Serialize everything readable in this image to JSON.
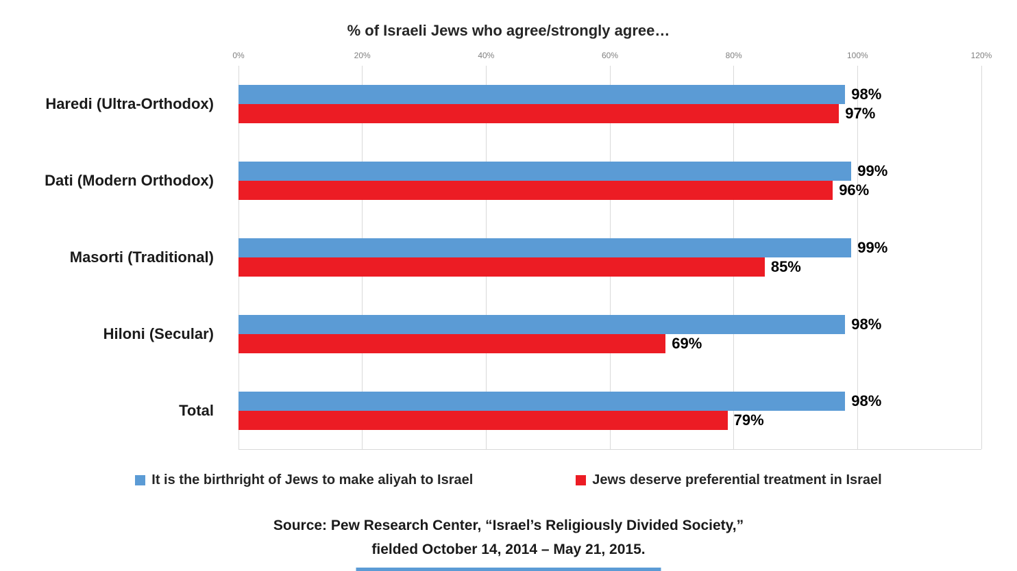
{
  "chart_data": {
    "type": "bar",
    "orientation": "horizontal",
    "title": "% of Israeli Jews who agree/strongly agree…",
    "categories": [
      "Haredi (Ultra-Orthodox)",
      "Dati (Modern Orthodox)",
      "Masorti (Traditional)",
      "Hiloni (Secular)",
      "Total"
    ],
    "series": [
      {
        "name": "It is the birthright of Jews to make aliyah to Israel",
        "color": "#5B9BD5",
        "values": [
          98,
          99,
          99,
          98,
          98
        ]
      },
      {
        "name": "Jews deserve preferential treatment in Israel",
        "color": "#EC1C24",
        "values": [
          97,
          96,
          85,
          69,
          79
        ]
      }
    ],
    "x_axis": {
      "position": "top",
      "min": 0,
      "max": 120,
      "ticks": [
        "0%",
        "20%",
        "40%",
        "60%",
        "80%",
        "100%",
        "120%"
      ]
    },
    "value_label_format": "{v}%",
    "grid": true,
    "legend_position": "bottom"
  },
  "source": {
    "line1": "Source: Pew Research Center, “Israel’s Religiously Divided Society,”",
    "line2": "fielded October 14, 2014 – May 21, 2015."
  }
}
